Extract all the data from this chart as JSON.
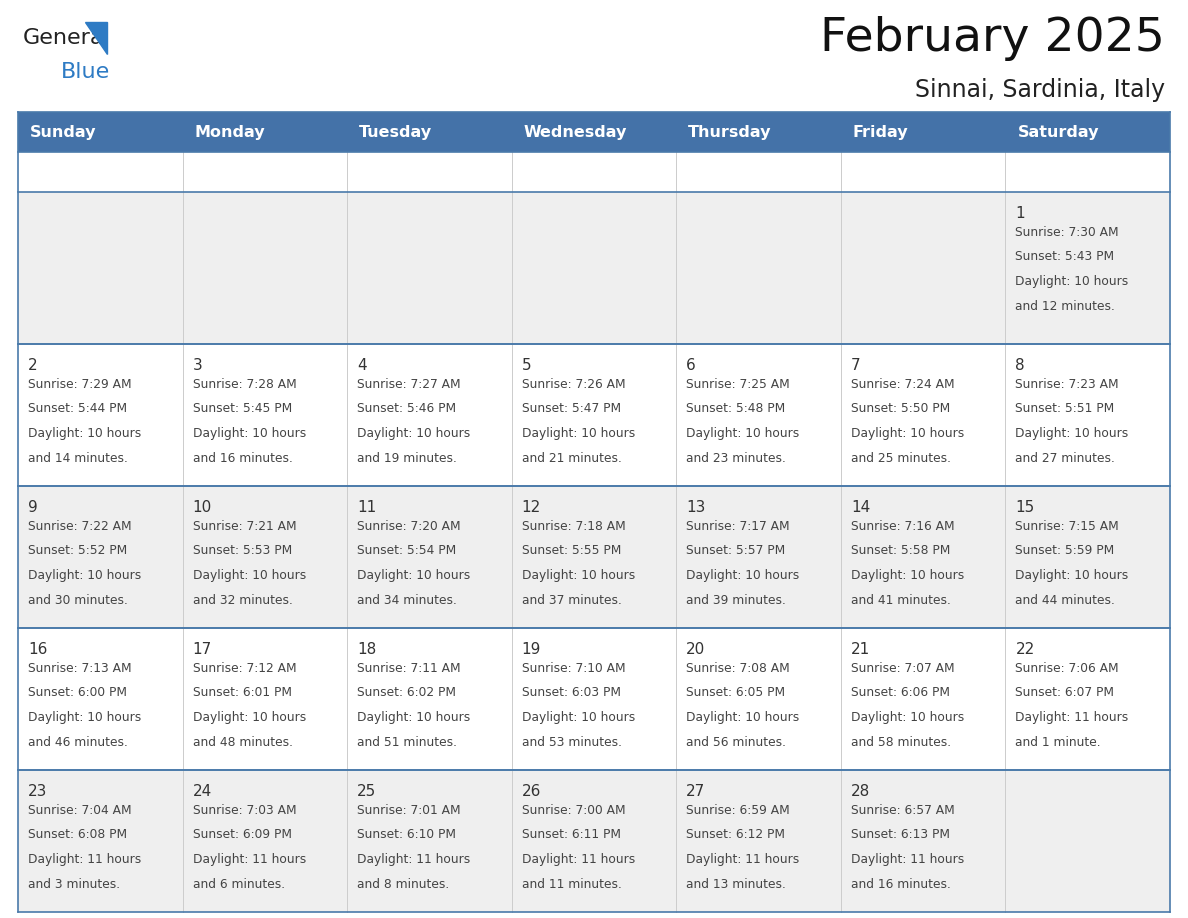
{
  "title": "February 2025",
  "subtitle": "Sinnai, Sardinia, Italy",
  "header_bg": "#4472a8",
  "header_text_color": "#ffffff",
  "day_names": [
    "Sunday",
    "Monday",
    "Tuesday",
    "Wednesday",
    "Thursday",
    "Friday",
    "Saturday"
  ],
  "row_bg_odd": "#efefef",
  "row_bg_even": "#ffffff",
  "cell_border_color": "#4a7aaa",
  "day_number_color": "#333333",
  "cell_text_color": "#444444",
  "logo_general_color": "#222222",
  "logo_blue_color": "#2e7bc4",
  "calendar_data": [
    [
      null,
      null,
      null,
      null,
      null,
      null,
      {
        "day": 1,
        "sunrise": "7:30 AM",
        "sunset": "5:43 PM",
        "daylight": "10 hours",
        "daylight2": "and 12 minutes."
      }
    ],
    [
      {
        "day": 2,
        "sunrise": "7:29 AM",
        "sunset": "5:44 PM",
        "daylight": "10 hours",
        "daylight2": "and 14 minutes."
      },
      {
        "day": 3,
        "sunrise": "7:28 AM",
        "sunset": "5:45 PM",
        "daylight": "10 hours",
        "daylight2": "and 16 minutes."
      },
      {
        "day": 4,
        "sunrise": "7:27 AM",
        "sunset": "5:46 PM",
        "daylight": "10 hours",
        "daylight2": "and 19 minutes."
      },
      {
        "day": 5,
        "sunrise": "7:26 AM",
        "sunset": "5:47 PM",
        "daylight": "10 hours",
        "daylight2": "and 21 minutes."
      },
      {
        "day": 6,
        "sunrise": "7:25 AM",
        "sunset": "5:48 PM",
        "daylight": "10 hours",
        "daylight2": "and 23 minutes."
      },
      {
        "day": 7,
        "sunrise": "7:24 AM",
        "sunset": "5:50 PM",
        "daylight": "10 hours",
        "daylight2": "and 25 minutes."
      },
      {
        "day": 8,
        "sunrise": "7:23 AM",
        "sunset": "5:51 PM",
        "daylight": "10 hours",
        "daylight2": "and 27 minutes."
      }
    ],
    [
      {
        "day": 9,
        "sunrise": "7:22 AM",
        "sunset": "5:52 PM",
        "daylight": "10 hours",
        "daylight2": "and 30 minutes."
      },
      {
        "day": 10,
        "sunrise": "7:21 AM",
        "sunset": "5:53 PM",
        "daylight": "10 hours",
        "daylight2": "and 32 minutes."
      },
      {
        "day": 11,
        "sunrise": "7:20 AM",
        "sunset": "5:54 PM",
        "daylight": "10 hours",
        "daylight2": "and 34 minutes."
      },
      {
        "day": 12,
        "sunrise": "7:18 AM",
        "sunset": "5:55 PM",
        "daylight": "10 hours",
        "daylight2": "and 37 minutes."
      },
      {
        "day": 13,
        "sunrise": "7:17 AM",
        "sunset": "5:57 PM",
        "daylight": "10 hours",
        "daylight2": "and 39 minutes."
      },
      {
        "day": 14,
        "sunrise": "7:16 AM",
        "sunset": "5:58 PM",
        "daylight": "10 hours",
        "daylight2": "and 41 minutes."
      },
      {
        "day": 15,
        "sunrise": "7:15 AM",
        "sunset": "5:59 PM",
        "daylight": "10 hours",
        "daylight2": "and 44 minutes."
      }
    ],
    [
      {
        "day": 16,
        "sunrise": "7:13 AM",
        "sunset": "6:00 PM",
        "daylight": "10 hours",
        "daylight2": "and 46 minutes."
      },
      {
        "day": 17,
        "sunrise": "7:12 AM",
        "sunset": "6:01 PM",
        "daylight": "10 hours",
        "daylight2": "and 48 minutes."
      },
      {
        "day": 18,
        "sunrise": "7:11 AM",
        "sunset": "6:02 PM",
        "daylight": "10 hours",
        "daylight2": "and 51 minutes."
      },
      {
        "day": 19,
        "sunrise": "7:10 AM",
        "sunset": "6:03 PM",
        "daylight": "10 hours",
        "daylight2": "and 53 minutes."
      },
      {
        "day": 20,
        "sunrise": "7:08 AM",
        "sunset": "6:05 PM",
        "daylight": "10 hours",
        "daylight2": "and 56 minutes."
      },
      {
        "day": 21,
        "sunrise": "7:07 AM",
        "sunset": "6:06 PM",
        "daylight": "10 hours",
        "daylight2": "and 58 minutes."
      },
      {
        "day": 22,
        "sunrise": "7:06 AM",
        "sunset": "6:07 PM",
        "daylight": "11 hours",
        "daylight2": "and 1 minute."
      }
    ],
    [
      {
        "day": 23,
        "sunrise": "7:04 AM",
        "sunset": "6:08 PM",
        "daylight": "11 hours",
        "daylight2": "and 3 minutes."
      },
      {
        "day": 24,
        "sunrise": "7:03 AM",
        "sunset": "6:09 PM",
        "daylight": "11 hours",
        "daylight2": "and 6 minutes."
      },
      {
        "day": 25,
        "sunrise": "7:01 AM",
        "sunset": "6:10 PM",
        "daylight": "11 hours",
        "daylight2": "and 8 minutes."
      },
      {
        "day": 26,
        "sunrise": "7:00 AM",
        "sunset": "6:11 PM",
        "daylight": "11 hours",
        "daylight2": "and 11 minutes."
      },
      {
        "day": 27,
        "sunrise": "6:59 AM",
        "sunset": "6:12 PM",
        "daylight": "11 hours",
        "daylight2": "and 13 minutes."
      },
      {
        "day": 28,
        "sunrise": "6:57 AM",
        "sunset": "6:13 PM",
        "daylight": "11 hours",
        "daylight2": "and 16 minutes."
      },
      null
    ]
  ]
}
